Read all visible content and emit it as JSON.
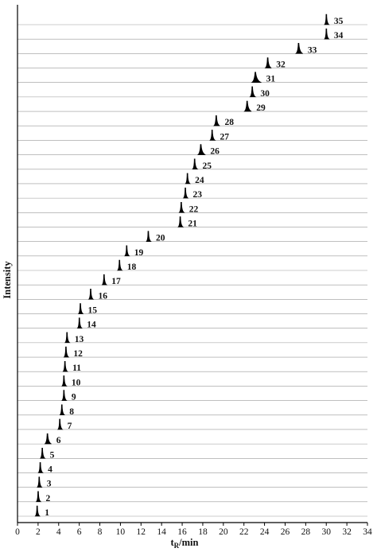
{
  "chart_data": {
    "type": "line",
    "subtype": "stacked chromatograms",
    "xlabel": "t",
    "xlabel_subscript": "R",
    "xlabel_unit": "/min",
    "ylabel": "Intensity",
    "xlim": [
      0,
      34
    ],
    "x_ticks": [
      0,
      2,
      4,
      6,
      8,
      10,
      12,
      14,
      16,
      18,
      20,
      22,
      24,
      26,
      28,
      30,
      32,
      34
    ],
    "grid": false,
    "trace_color": "#000000",
    "baseline_color": "#999999",
    "series": [
      {
        "label": "1",
        "peak_rt": 1.9,
        "width": 0.22
      },
      {
        "label": "2",
        "peak_rt": 2.0,
        "width": 0.22
      },
      {
        "label": "3",
        "peak_rt": 2.1,
        "width": 0.22
      },
      {
        "label": "4",
        "peak_rt": 2.2,
        "width": 0.22
      },
      {
        "label": "5",
        "peak_rt": 2.4,
        "width": 0.22
      },
      {
        "label": "6",
        "peak_rt": 2.9,
        "width": 0.5
      },
      {
        "label": "7",
        "peak_rt": 4.1,
        "width": 0.22
      },
      {
        "label": "8",
        "peak_rt": 4.3,
        "width": 0.22
      },
      {
        "label": "9",
        "peak_rt": 4.5,
        "width": 0.22
      },
      {
        "label": "10",
        "peak_rt": 4.5,
        "width": 0.22
      },
      {
        "label": "11",
        "peak_rt": 4.6,
        "width": 0.22
      },
      {
        "label": "12",
        "peak_rt": 4.7,
        "width": 0.22
      },
      {
        "label": "13",
        "peak_rt": 4.8,
        "width": 0.22
      },
      {
        "label": "14",
        "peak_rt": 6.0,
        "width": 0.22
      },
      {
        "label": "15",
        "peak_rt": 6.1,
        "width": 0.25
      },
      {
        "label": "16",
        "peak_rt": 7.1,
        "width": 0.25
      },
      {
        "label": "17",
        "peak_rt": 8.4,
        "width": 0.25
      },
      {
        "label": "18",
        "peak_rt": 9.9,
        "width": 0.3
      },
      {
        "label": "19",
        "peak_rt": 10.6,
        "width": 0.3
      },
      {
        "label": "20",
        "peak_rt": 12.7,
        "width": 0.3
      },
      {
        "label": "21",
        "peak_rt": 15.8,
        "width": 0.35
      },
      {
        "label": "22",
        "peak_rt": 15.9,
        "width": 0.35
      },
      {
        "label": "23",
        "peak_rt": 16.3,
        "width": 0.3
      },
      {
        "label": "24",
        "peak_rt": 16.5,
        "width": 0.3
      },
      {
        "label": "25",
        "peak_rt": 17.2,
        "width": 0.35
      },
      {
        "label": "26",
        "peak_rt": 17.8,
        "width": 0.6
      },
      {
        "label": "27",
        "peak_rt": 18.9,
        "width": 0.35
      },
      {
        "label": "28",
        "peak_rt": 19.3,
        "width": 0.45
      },
      {
        "label": "29",
        "peak_rt": 22.3,
        "width": 0.55
      },
      {
        "label": "30",
        "peak_rt": 22.8,
        "width": 0.4
      },
      {
        "label": "31",
        "peak_rt": 23.1,
        "width": 0.8
      },
      {
        "label": "32",
        "peak_rt": 24.3,
        "width": 0.45
      },
      {
        "label": "33",
        "peak_rt": 27.3,
        "width": 0.55
      },
      {
        "label": "34",
        "peak_rt": 30.0,
        "width": 0.22
      },
      {
        "label": "35",
        "peak_rt": 30.0,
        "width": 0.22
      }
    ]
  }
}
